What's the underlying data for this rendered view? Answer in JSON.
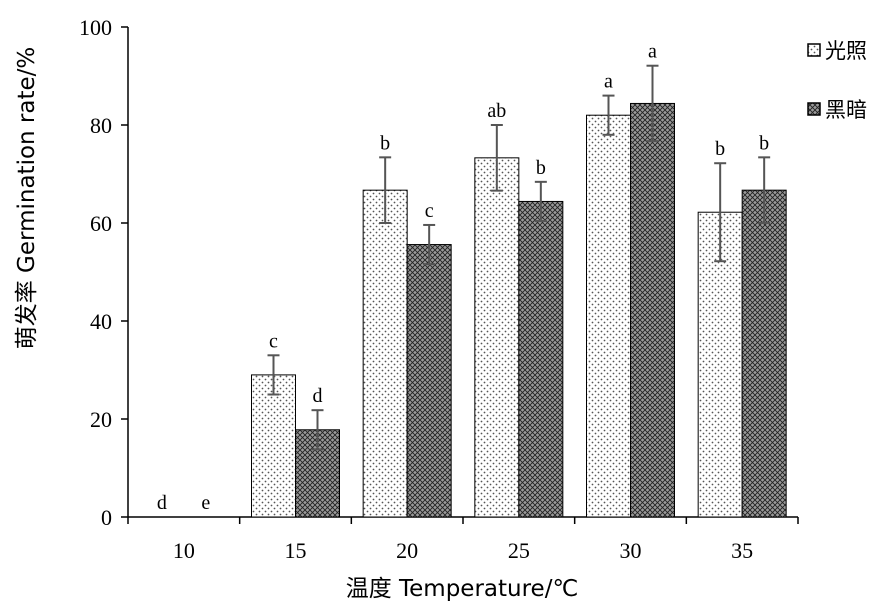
{
  "chart_data": {
    "type": "bar",
    "categories": [
      "10",
      "15",
      "20",
      "25",
      "30",
      "35"
    ],
    "series": [
      {
        "name": "光照",
        "values": [
          0,
          29,
          66.7,
          73.3,
          82,
          62.2
        ],
        "errors": [
          0,
          4,
          6.7,
          6.7,
          4,
          10
        ],
        "labels": [
          "d",
          "c",
          "b",
          "ab",
          "a",
          "b"
        ],
        "pattern": "dots"
      },
      {
        "name": "黑暗",
        "values": [
          0,
          17.8,
          55.6,
          64.4,
          84.4,
          66.7
        ],
        "errors": [
          0,
          4,
          4,
          4,
          7.7,
          6.7
        ],
        "labels": [
          "e",
          "d",
          "c",
          "b",
          "a",
          "b"
        ],
        "pattern": "crosshatch"
      }
    ],
    "xlabel": "温度 Temperature/℃",
    "ylabel": "萌发率 Germination rate/%",
    "ylim": [
      0,
      100
    ],
    "yticks": [
      0,
      20,
      40,
      60,
      80,
      100
    ],
    "grid": false,
    "legend_position": "top-right"
  }
}
